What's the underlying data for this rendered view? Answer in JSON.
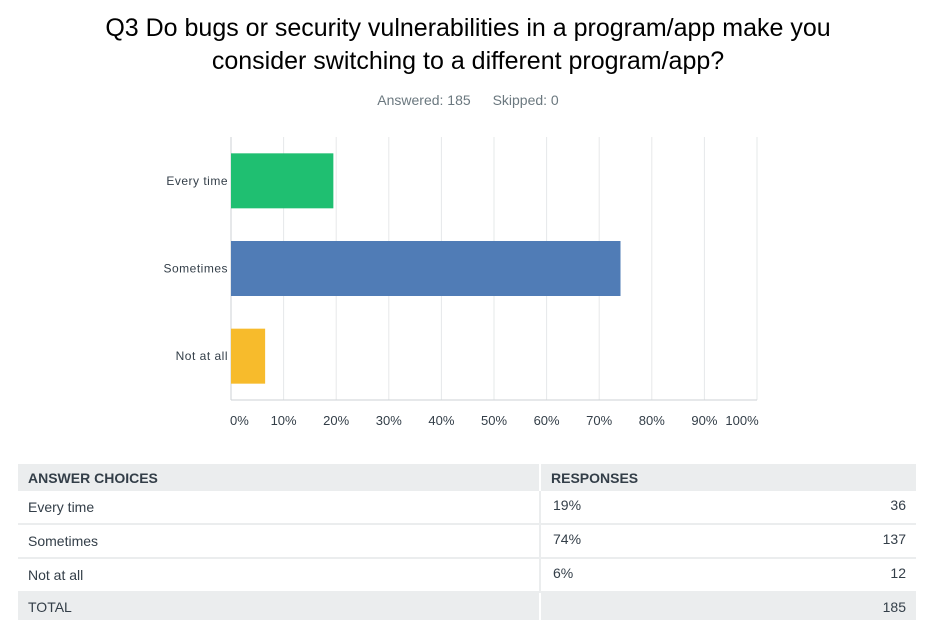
{
  "title_lines": [
    "Q3 Do bugs or security vulnerabilities in a program/app make you",
    "consider switching to a different program/app?"
  ],
  "answered": "Answered: 185",
  "skipped": "Skipped: 0",
  "chart_data": {
    "type": "bar",
    "orientation": "horizontal",
    "categories": [
      "Every time",
      "Sometimes",
      "Not at all"
    ],
    "values": [
      19.46,
      74.05,
      6.49
    ],
    "colors": [
      "#1fbf71",
      "#507cb6",
      "#f7bb2c"
    ],
    "xlim": [
      0,
      100
    ],
    "x_ticks": [
      "0%",
      "10%",
      "20%",
      "30%",
      "40%",
      "50%",
      "60%",
      "70%",
      "80%",
      "90%",
      "100%"
    ],
    "grid": true
  },
  "table": {
    "headers": [
      "ANSWER CHOICES",
      "RESPONSES"
    ],
    "rows": [
      {
        "choice": "Every time",
        "percent": "19%",
        "count": "36"
      },
      {
        "choice": "Sometimes",
        "percent": "74%",
        "count": "137"
      },
      {
        "choice": "Not at all",
        "percent": "6%",
        "count": "12"
      }
    ],
    "total_label": "TOTAL",
    "total_count": "185"
  }
}
